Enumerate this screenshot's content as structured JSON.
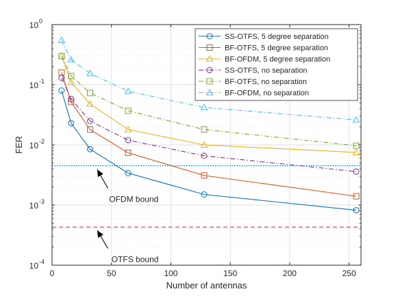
{
  "chart_data": {
    "type": "line",
    "xlabel": "Number of antennas",
    "ylabel": "FER",
    "xlim": [
      0,
      260
    ],
    "ylim": [
      0.0001,
      1
    ],
    "yscale": "log",
    "grid": true,
    "legend_position": "top-right",
    "x_ticks": [
      {
        "value": 0,
        "label": "0"
      },
      {
        "value": 50,
        "label": "50"
      },
      {
        "value": 100,
        "label": "100"
      },
      {
        "value": 150,
        "label": "150"
      },
      {
        "value": 200,
        "label": "200"
      },
      {
        "value": 250,
        "label": "250"
      }
    ],
    "y_ticks": [
      {
        "value": 0.0001,
        "base": "10",
        "exp": "-4"
      },
      {
        "value": 0.001,
        "base": "10",
        "exp": "-3"
      },
      {
        "value": 0.01,
        "base": "10",
        "exp": "-2"
      },
      {
        "value": 0.1,
        "base": "10",
        "exp": "-1"
      },
      {
        "value": 1,
        "base": "10",
        "exp": "0"
      }
    ],
    "x": [
      8,
      16,
      32,
      64,
      128,
      256
    ],
    "series": [
      {
        "name": "SS-OTFS, 5 degree separation",
        "color": "#0072BD",
        "marker": "circle",
        "dash": "solid",
        "values": [
          0.08,
          0.023,
          0.0085,
          0.0034,
          0.0015,
          0.00082
        ]
      },
      {
        "name": "BF-OTFS, 5 degree separation",
        "color": "#D95319",
        "marker": "square",
        "dash": "solid",
        "values": [
          0.16,
          0.052,
          0.018,
          0.0074,
          0.0031,
          0.0014
        ]
      },
      {
        "name": "BF-OFDM, 5 degree separation",
        "color": "#EDB120",
        "marker": "triangle",
        "dash": "solid",
        "values": [
          0.3,
          0.11,
          0.048,
          0.018,
          0.01,
          0.0075
        ]
      },
      {
        "name": "SS-OTFS, no separation",
        "color": "#7E2F8E",
        "marker": "circle",
        "dash": "dashdot",
        "values": [
          0.13,
          0.058,
          0.025,
          0.012,
          0.0066,
          0.0036
        ]
      },
      {
        "name": "BF-OTFS, no separation",
        "color": "#77AC30",
        "marker": "square",
        "dash": "dashdot",
        "values": [
          0.3,
          0.14,
          0.073,
          0.037,
          0.018,
          0.0097
        ]
      },
      {
        "name": "BF-OFDM, no separation",
        "color": "#4DBEEE",
        "marker": "triangle",
        "dash": "dashdot",
        "values": [
          0.55,
          0.26,
          0.155,
          0.078,
          0.042,
          0.026
        ]
      }
    ],
    "reference_lines": [
      {
        "name": "OFDM bound",
        "value": 0.0045,
        "color": "#0072BD",
        "dash": "dotted"
      },
      {
        "name": "OTFS bound",
        "value": 0.00043,
        "color": "#D95360",
        "dash": "dashed"
      }
    ],
    "annotations": [
      {
        "text": "OFDM bound",
        "arrow_to": [
          38,
          0.0039
        ],
        "arrow_from": [
          47,
          0.0019
        ],
        "text_at": [
          48,
          0.00125
        ]
      },
      {
        "text": "OTFS bound",
        "arrow_to": [
          38,
          0.00038
        ],
        "arrow_from": [
          47,
          0.00019
        ],
        "text_at": [
          50,
          0.000125
        ]
      }
    ]
  }
}
